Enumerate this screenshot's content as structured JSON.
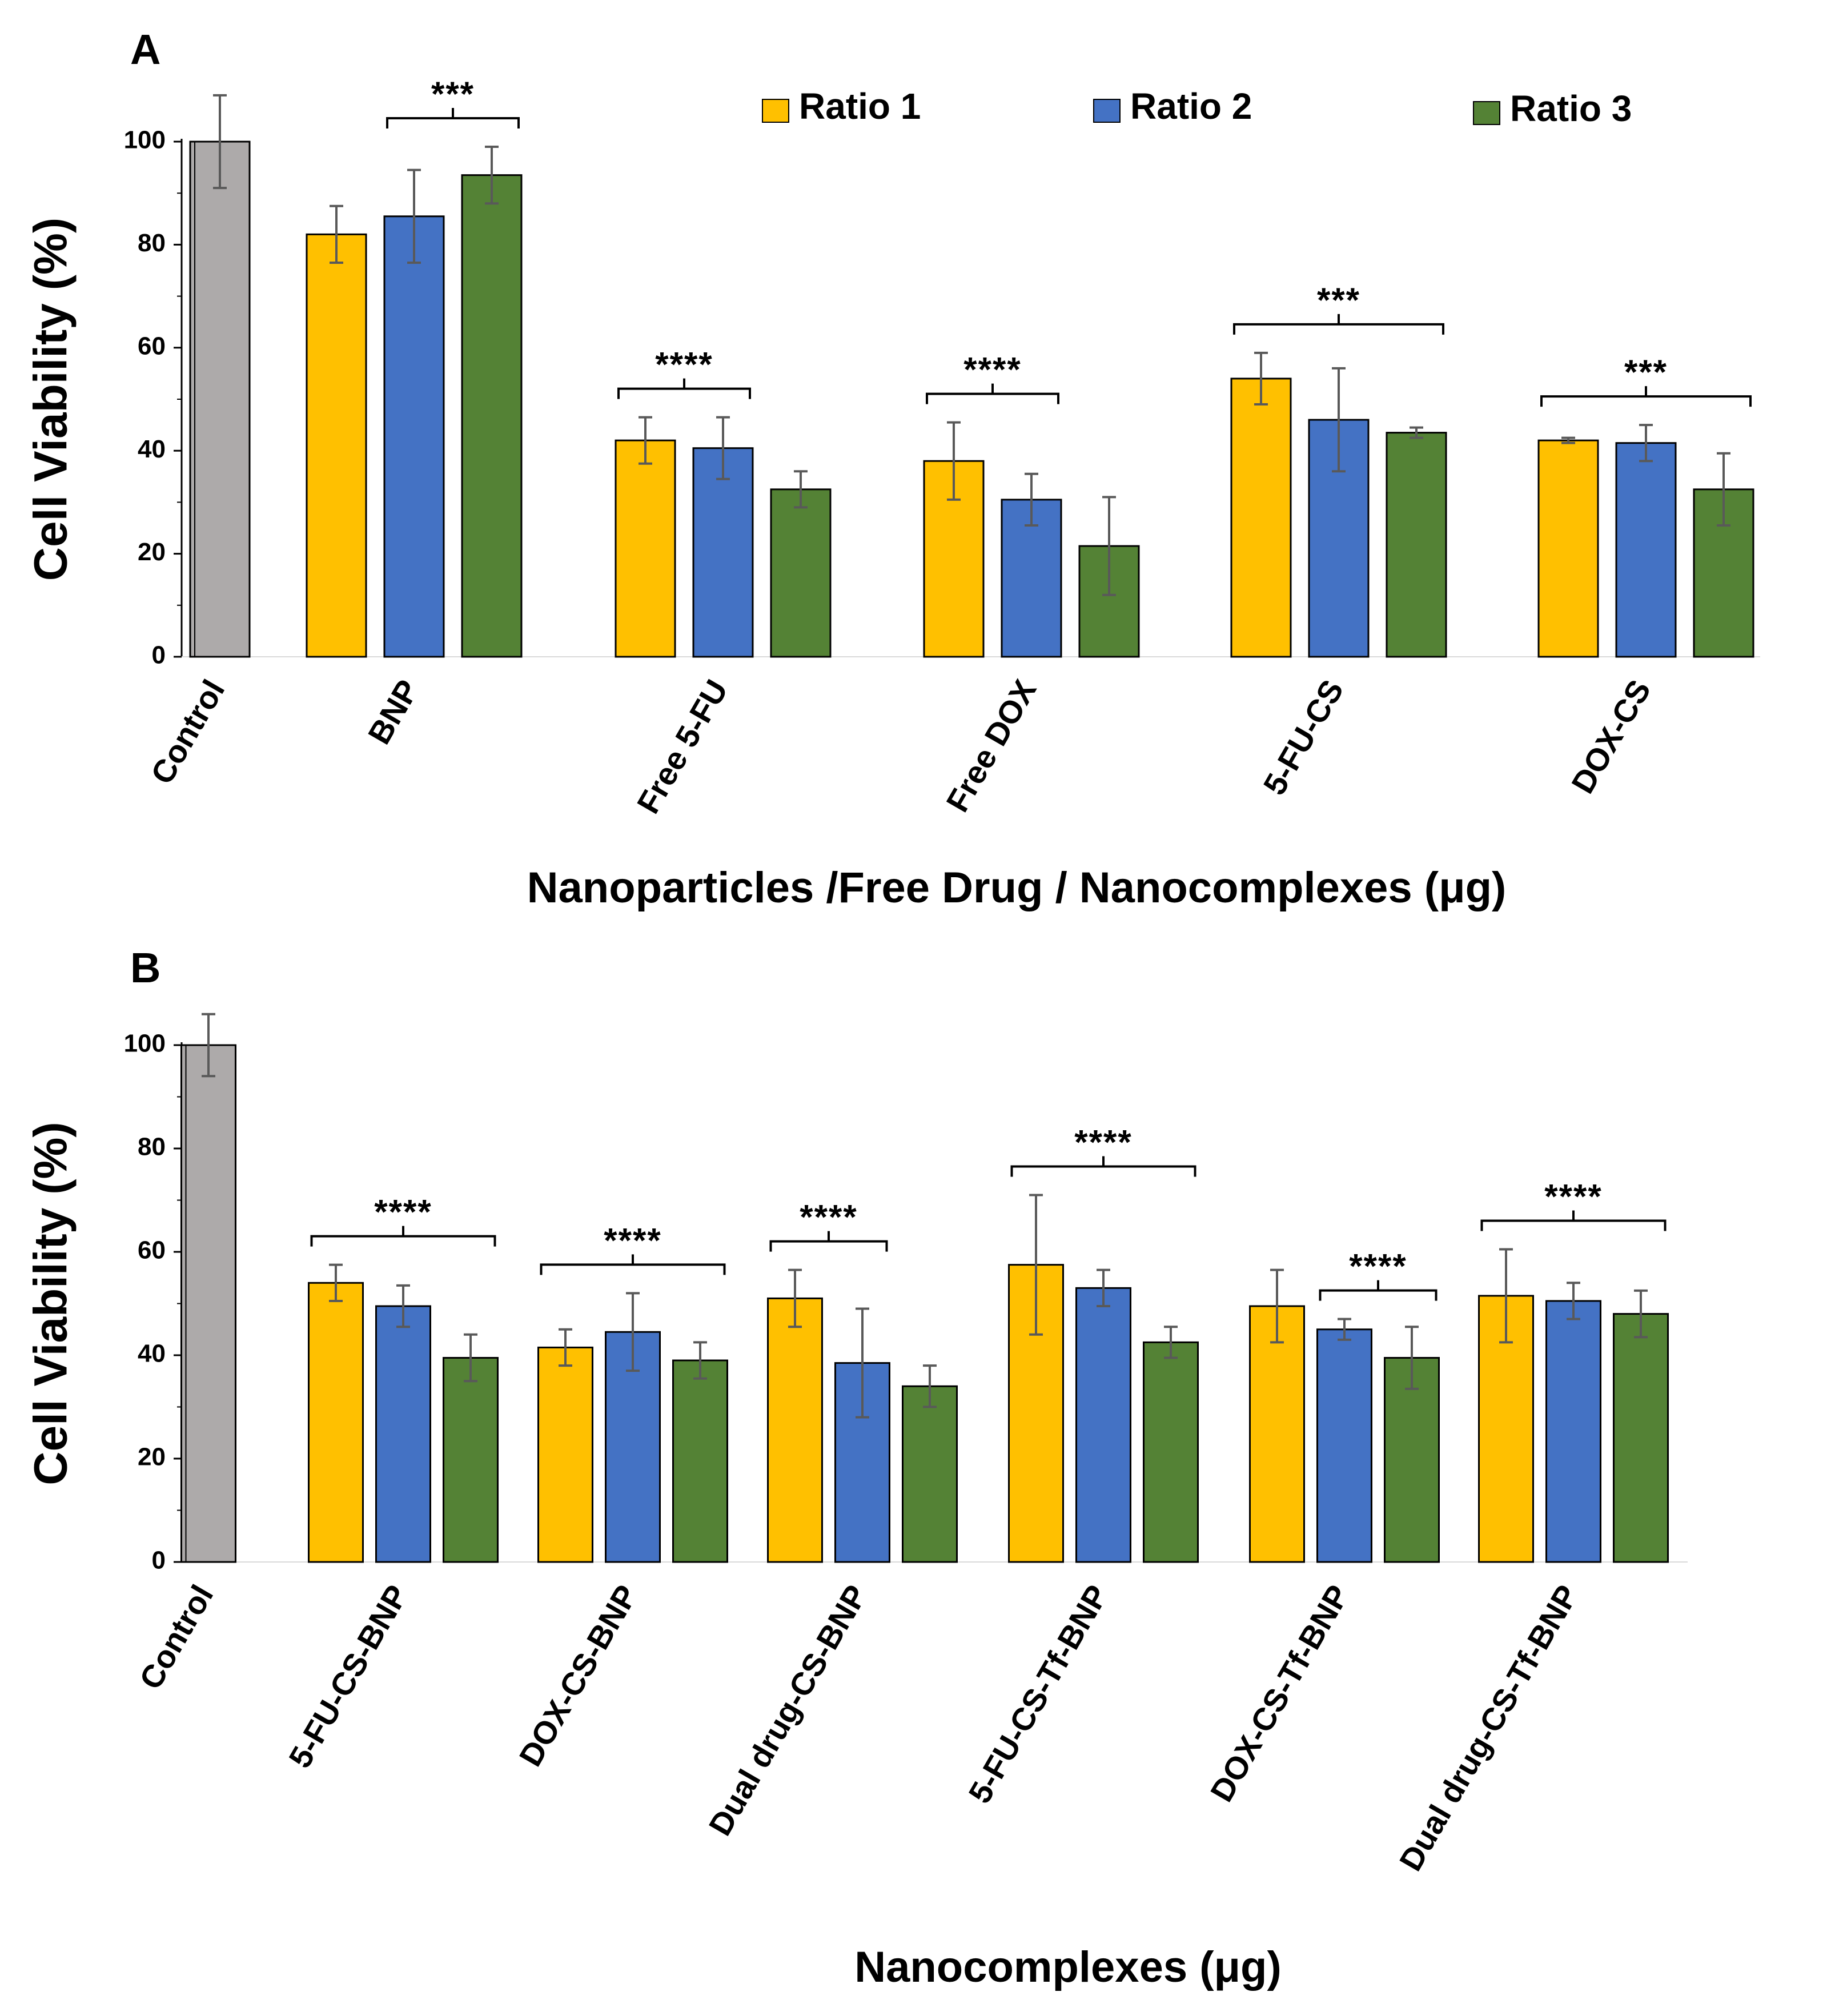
{
  "legend": [
    {
      "label": "Ratio 1",
      "color": "#FFC000"
    },
    {
      "label": "Ratio 2",
      "color": "#4472C4"
    },
    {
      "label": "Ratio 3",
      "color": "#548235"
    }
  ],
  "chart_data": [
    {
      "panel": "A",
      "type": "bar",
      "ylabel": "Cell Viability (%)",
      "xlabel": "Nanoparticles /Free Drug / Nanocomplexes (μg)",
      "ylim": [
        0,
        100
      ],
      "yticks": [
        0,
        20,
        40,
        60,
        80,
        100
      ],
      "control": {
        "label": "Control",
        "value": 100,
        "error": 9,
        "color": "#ADAAAA"
      },
      "categories": [
        "BNP",
        "Free 5-FU",
        "Free DOX",
        "5-FU-CS",
        "DOX-CS"
      ],
      "series": [
        {
          "name": "Ratio 1",
          "values": [
            82,
            42,
            38,
            54,
            42
          ],
          "errors": [
            5.5,
            4.5,
            7.5,
            5,
            0.5
          ]
        },
        {
          "name": "Ratio 2",
          "values": [
            85.5,
            40.5,
            30.5,
            46,
            41.5
          ],
          "errors": [
            9,
            6,
            5,
            10,
            3.5
          ]
        },
        {
          "name": "Ratio 3",
          "values": [
            93.5,
            32.5,
            21.5,
            43.5,
            32.5
          ],
          "errors": [
            5.5,
            3.5,
            9.5,
            1,
            7
          ]
        }
      ],
      "annotations": [
        {
          "text": "***",
          "category": 0,
          "from_series": 1,
          "to_series": 2
        },
        {
          "text": "****",
          "category": 1,
          "from_series": 0,
          "to_series": 1
        },
        {
          "text": "****",
          "category": 2,
          "from_series": 0,
          "to_series": 1
        },
        {
          "text": "***",
          "category": 3,
          "from_series": 0,
          "to_series": 2
        },
        {
          "text": "***",
          "category": 4,
          "from_series": 0,
          "to_series": 2
        }
      ]
    },
    {
      "panel": "B",
      "type": "bar",
      "ylabel": "Cell Viability (%)",
      "xlabel": "Nanocomplexes (μg)",
      "ylim": [
        0,
        100
      ],
      "yticks": [
        0,
        20,
        40,
        60,
        80,
        100
      ],
      "control": {
        "label": "Control",
        "value": 100,
        "error": 6,
        "color": "#ADAAAA"
      },
      "categories": [
        "5-FU-CS-BNP",
        "DOX-CS-BNP",
        "Dual drug-CS-BNP",
        "5-FU-CS-Tf-BNP",
        "DOX-CS-Tf-BNP",
        "Dual drug-CS-Tf-BNP"
      ],
      "series": [
        {
          "name": "Ratio 1",
          "values": [
            54,
            41.5,
            51,
            57.5,
            49.5,
            51.5
          ],
          "errors": [
            3.5,
            3.5,
            5.5,
            13.5,
            7,
            9
          ]
        },
        {
          "name": "Ratio 2",
          "values": [
            49.5,
            44.5,
            38.5,
            53,
            45,
            50.5
          ],
          "errors": [
            4,
            7.5,
            10.5,
            3.5,
            2,
            3.5
          ]
        },
        {
          "name": "Ratio 3",
          "values": [
            39.5,
            39,
            34,
            42.5,
            39.5,
            48
          ],
          "errors": [
            4.5,
            3.5,
            4,
            3,
            6,
            4.5
          ]
        }
      ],
      "annotations": [
        {
          "text": "****",
          "category": 0,
          "from_series": 0,
          "to_series": 2
        },
        {
          "text": "****",
          "category": 1,
          "from_series": 0,
          "to_series": 2
        },
        {
          "text": "****",
          "category": 2,
          "from_series": 0,
          "to_series": 1
        },
        {
          "text": "****",
          "category": 3,
          "from_series": 0,
          "to_series": 2
        },
        {
          "text": "****",
          "category": 4,
          "from_series": 1,
          "to_series": 2
        },
        {
          "text": "****",
          "category": 5,
          "from_series": 0,
          "to_series": 2
        }
      ]
    }
  ]
}
